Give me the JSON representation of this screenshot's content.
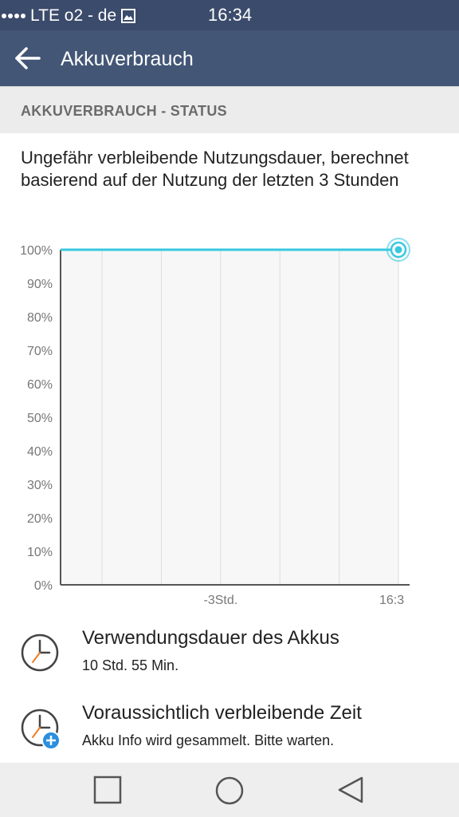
{
  "status_bar": {
    "carrier": "LTE o2 - de",
    "time": "16:34"
  },
  "app_bar": {
    "title": "Akkuverbrauch",
    "back_icon": "arrow-left-icon"
  },
  "section": {
    "header": "AKKUVERBRAUCH - STATUS"
  },
  "description": "Ungefähr verbleibende Nutzungsdauer, berechnet basierend auf der Nutzung der letzten 3 Stunden",
  "chart_data": {
    "type": "line",
    "title": "",
    "xlabel": "",
    "ylabel": "",
    "y_ticks": [
      "100%",
      "90%",
      "80%",
      "70%",
      "60%",
      "50%",
      "40%",
      "30%",
      "20%",
      "10%",
      "0%"
    ],
    "x_tick_labels": [
      "-3Std.",
      "16:3"
    ],
    "ylim": [
      0,
      100
    ],
    "xlim": [
      -5.7,
      0
    ],
    "grid": true,
    "series": [
      {
        "x": [
          -5.7,
          0
        ],
        "values": [
          100,
          100
        ]
      }
    ],
    "line_color": "#38c8e0"
  },
  "usage": {
    "title": "Verwendungsdauer des Akkus",
    "value": "10 Std. 55 Min.",
    "icon": "clock-icon"
  },
  "remaining": {
    "title": "Voraussichtlich verbleibende Zeit",
    "value": "Akku Info wird gesammelt. Bitte warten.",
    "icon": "clock-plus-icon"
  },
  "nav": {
    "recents_icon": "square-icon",
    "home_icon": "circle-icon",
    "back_icon": "triangle-back-icon"
  }
}
